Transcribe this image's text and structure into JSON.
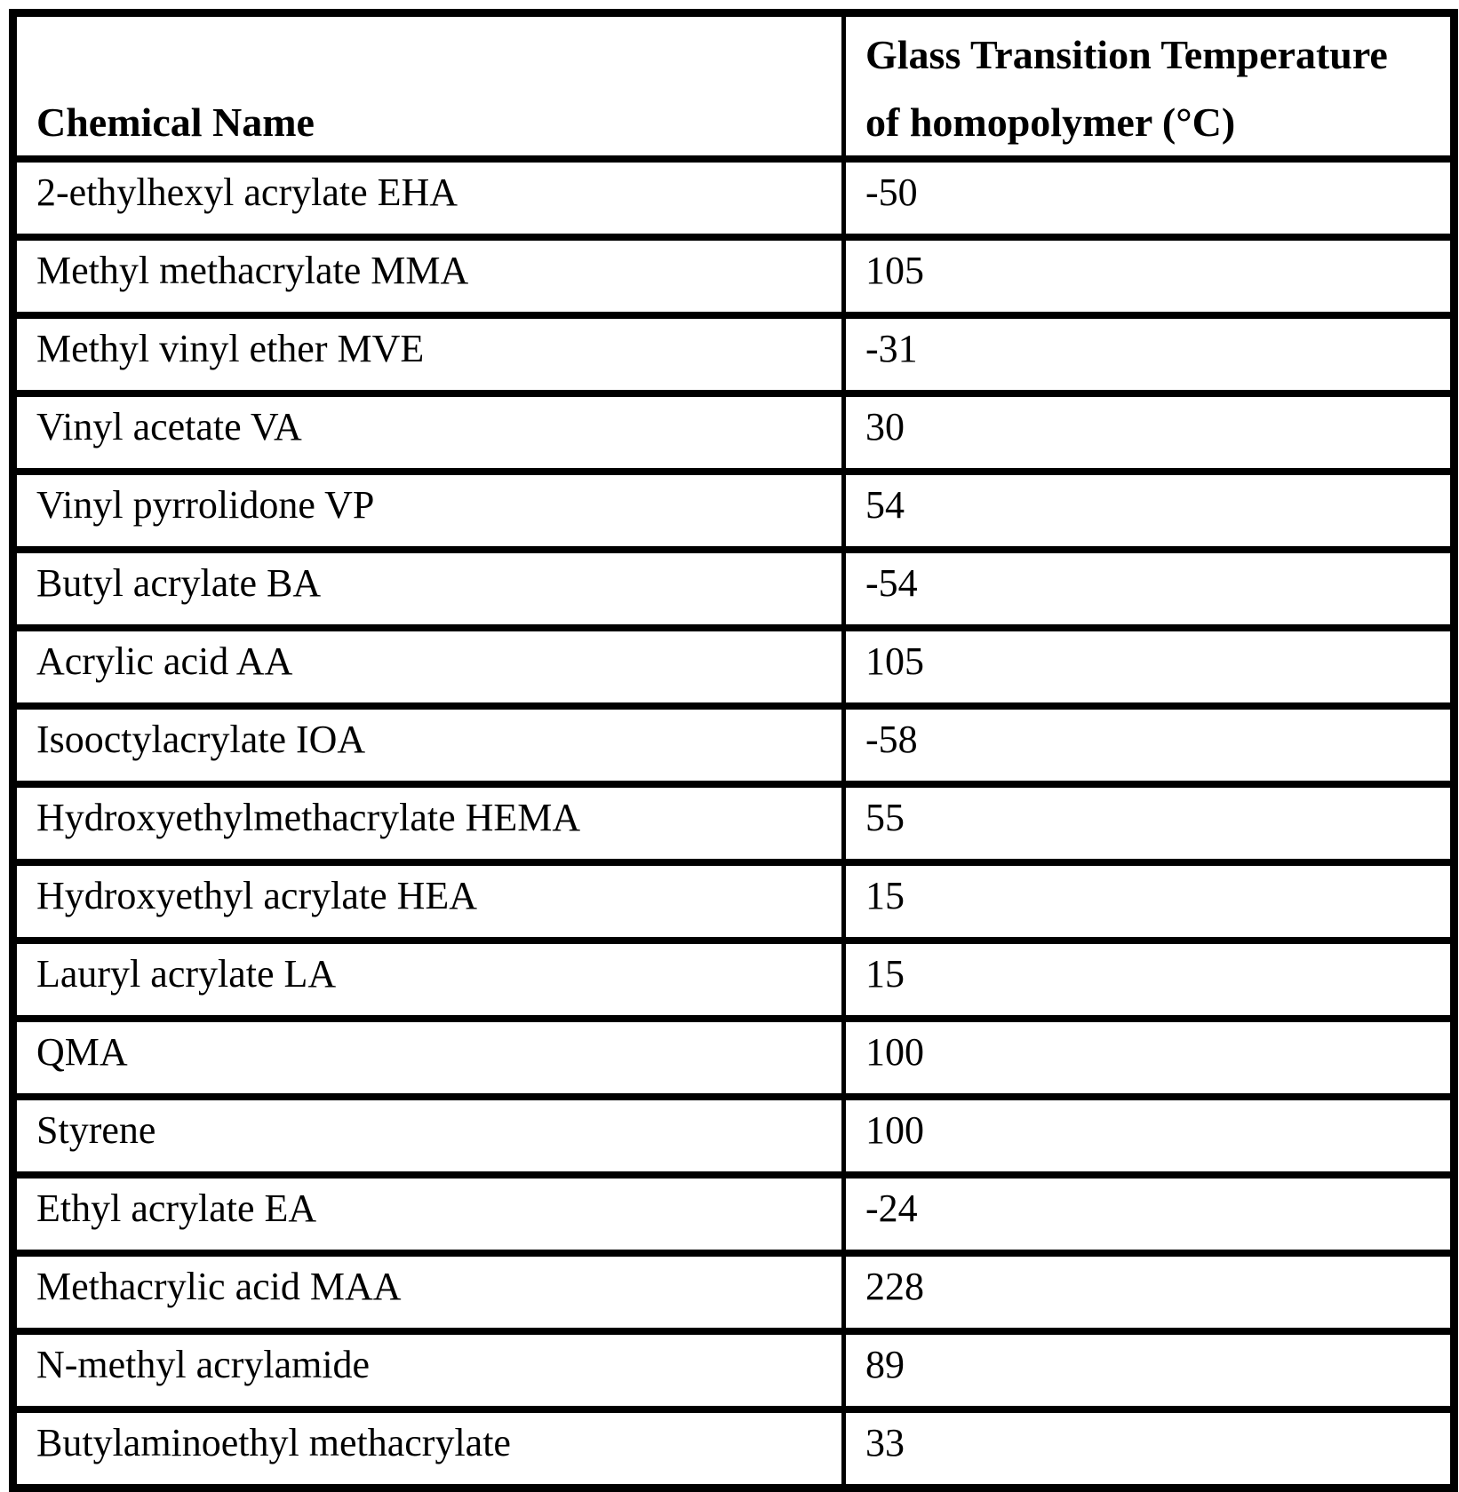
{
  "table": {
    "header": {
      "chemical_name": "Chemical Name",
      "tg_line1": "Glass Transition Temperature",
      "tg_line2": "of homopolymer (°C)"
    },
    "rows": [
      {
        "name": "2-ethylhexyl acrylate EHA",
        "tg": "-50"
      },
      {
        "name": "Methyl methacrylate MMA",
        "tg": "105"
      },
      {
        "name": "Methyl vinyl ether MVE",
        "tg": "-31"
      },
      {
        "name": "Vinyl acetate VA",
        "tg": "30"
      },
      {
        "name": "Vinyl pyrrolidone VP",
        "tg": "54"
      },
      {
        "name": "Butyl acrylate BA",
        "tg": "-54"
      },
      {
        "name": "Acrylic acid AA",
        "tg": "105"
      },
      {
        "name": "Isooctylacrylate IOA",
        "tg": "-58"
      },
      {
        "name": "Hydroxyethylmethacrylate HEMA",
        "tg": "55"
      },
      {
        "name": "Hydroxyethyl acrylate HEA",
        "tg": "15"
      },
      {
        "name": "Lauryl acrylate LA",
        "tg": "15"
      },
      {
        "name": "QMA",
        "tg": "100"
      },
      {
        "name": "Styrene",
        "tg": "100"
      },
      {
        "name": "Ethyl acrylate EA",
        "tg": "-24"
      },
      {
        "name": "Methacrylic acid MAA",
        "tg": "228"
      },
      {
        "name": "N-methyl acrylamide",
        "tg": "89"
      },
      {
        "name": "Butylaminoethyl methacrylate",
        "tg": "33"
      }
    ],
    "colors": {
      "border": "#000000",
      "text": "#000000",
      "background": "#ffffff"
    }
  }
}
